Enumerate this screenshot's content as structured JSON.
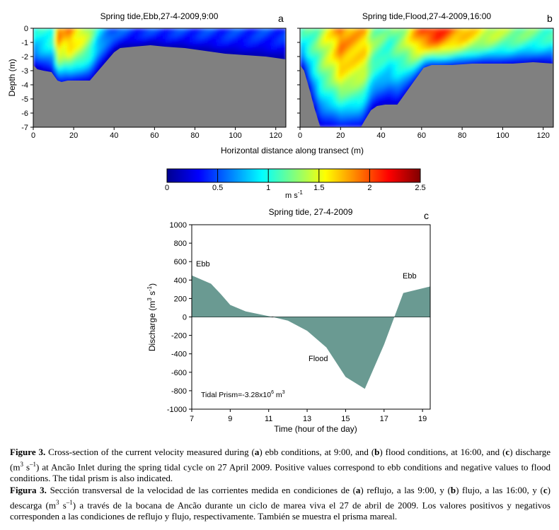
{
  "chart_data": [
    {
      "id": "a",
      "type": "heatmap",
      "panel_letter": "a",
      "title": "Spring tide,Ebb,27-4-2009,9:00",
      "xlabel": "Horizontal distance along transect (m)",
      "ylabel": "Depth (m)",
      "xlim": [
        0,
        125
      ],
      "ylim": [
        -7,
        0
      ],
      "xticks": [
        0,
        20,
        40,
        60,
        80,
        100,
        120
      ],
      "yticks": [
        0,
        -1,
        -2,
        -3,
        -4,
        -5,
        -6,
        -7
      ],
      "bottom_profile": {
        "x": [
          0,
          2,
          5,
          9,
          12,
          14,
          17,
          20,
          24,
          28,
          31,
          34,
          37,
          40,
          43,
          50,
          58,
          65,
          75,
          85,
          95,
          105,
          115,
          125
        ],
        "depth": [
          -2.6,
          -2.9,
          -3.0,
          -3.1,
          -3.7,
          -3.8,
          -3.7,
          -3.7,
          -3.7,
          -3.7,
          -3.2,
          -2.7,
          -2.2,
          -1.7,
          -1.4,
          -1.3,
          -1.2,
          -1.3,
          -1.4,
          -1.6,
          -1.8,
          -1.9,
          -2.0,
          -2.2
        ]
      },
      "velocity_profile_surface": {
        "x": [
          0,
          5,
          10,
          12,
          15,
          18,
          21,
          24,
          28,
          32,
          36,
          40,
          50,
          60,
          70,
          80,
          90,
          100,
          110,
          120,
          125
        ],
        "speed": [
          0.9,
          1.0,
          1.1,
          1.9,
          1.7,
          1.85,
          1.65,
          1.55,
          1.3,
          0.9,
          0.7,
          0.55,
          0.45,
          0.45,
          0.45,
          0.45,
          0.45,
          0.45,
          0.45,
          0.45,
          0.45
        ]
      }
    },
    {
      "id": "b",
      "type": "heatmap",
      "panel_letter": "b",
      "title": "Spring tide,Flood,27-4-2009,16:00",
      "xlabel": "Horizontal distance along transect (m)",
      "xlim": [
        0,
        125
      ],
      "ylim": [
        -7,
        0
      ],
      "xticks": [
        0,
        20,
        40,
        60,
        80,
        100,
        120
      ],
      "bottom_profile": {
        "x": [
          0,
          2,
          5,
          7,
          10,
          20,
          30,
          32,
          35,
          38,
          42,
          48,
          52,
          55,
          58,
          61,
          65,
          75,
          85,
          95,
          105,
          115,
          125
        ],
        "depth": [
          -2.6,
          -3.0,
          -4.5,
          -5.6,
          -7.0,
          -7.0,
          -7.0,
          -6.5,
          -5.8,
          -5.5,
          -5.4,
          -5.4,
          -4.6,
          -4.0,
          -3.4,
          -2.8,
          -2.6,
          -2.6,
          -2.5,
          -2.5,
          -2.5,
          -2.4,
          -2.5
        ]
      },
      "velocity_profile_surface": {
        "x": [
          0,
          4,
          8,
          12,
          16,
          20,
          24,
          28,
          32,
          36,
          40,
          44,
          48,
          52,
          56,
          60,
          64,
          68,
          72,
          76,
          80,
          85,
          90,
          95,
          100,
          105,
          110,
          115,
          120,
          125
        ],
        "speed": [
          1.0,
          1.1,
          1.2,
          1.45,
          1.6,
          1.9,
          1.8,
          1.75,
          1.7,
          1.3,
          1.2,
          1.1,
          1.25,
          1.4,
          1.7,
          1.95,
          2.1,
          2.15,
          2.0,
          1.85,
          1.8,
          1.65,
          1.5,
          1.45,
          1.35,
          1.3,
          1.25,
          1.2,
          1.15,
          1.1
        ]
      }
    },
    {
      "id": "colorbar",
      "type": "colorbar",
      "label": "m s",
      "label_sup": "-1",
      "range": [
        0,
        2.5
      ],
      "ticks": [
        "0",
        "0.5",
        "1",
        "1.5",
        "2",
        "2.5"
      ]
    },
    {
      "id": "c",
      "type": "area",
      "panel_letter": "c",
      "title": "Spring tide, 27-4-2009",
      "xlabel": "Time (hour of the day)",
      "ylabel": "Discharge (m",
      "ylabel_sup1": "3",
      "ylabel_mid": " s",
      "ylabel_sup2": "-1",
      "ylabel_end": ")",
      "xlim": [
        7,
        19.4
      ],
      "ylim": [
        -1000,
        1000
      ],
      "xticks": [
        7,
        9,
        11,
        13,
        15,
        17,
        19
      ],
      "yticks": [
        1000,
        800,
        600,
        400,
        200,
        0,
        -200,
        -400,
        -600,
        -800,
        -1000
      ],
      "x": [
        7,
        8,
        8.5,
        9,
        9.8,
        11.2,
        12,
        13,
        14,
        15,
        16,
        17,
        18,
        19.4
      ],
      "y": [
        450,
        360,
        250,
        130,
        60,
        0,
        -40,
        -150,
        -330,
        -650,
        -780,
        -300,
        260,
        330
      ],
      "fill_color": "#6a9a92",
      "annotations": [
        "Ebb",
        "Flood",
        "Ebb"
      ],
      "tidal_prism": "Tidal Prism=-3.28x10",
      "tidal_prism_sup": "6",
      "tidal_prism_unit": " m",
      "tidal_prism_unit_sup": "3"
    }
  ],
  "caption_en": {
    "label": "Figure 3.",
    "p1": " Cross-section of the current velocity measured during (",
    "a": "a",
    "p2": ") ebb conditions, at 9:00, and (",
    "b": "b",
    "p3": ") flood conditions, at 16:00, and (",
    "c": "c",
    "p4": ") discharge (m",
    "sup1": "3",
    "p5": " s",
    "sup2": "–1",
    "p6": ") at  Ancão Inlet during the spring tidal cycle on 27 April 2009. Positive values correspond to ebb conditions and negative values to flood conditions. The tidal prism is also indicated."
  },
  "caption_es": {
    "label": "Figura 3.",
    "p1": " Sección transversal de la velocidad de las corrientes medida en condiciones de (",
    "a": "a",
    "p2": ") reflujo, a las 9:00, y (",
    "b": "b",
    "p3": ") flujo, a las 16:00, y (",
    "c": "c",
    "p4": ") descarga (m",
    "sup1": "3",
    "p5": " s",
    "sup2": "–1",
    "p6": ") a través de la bocana de Ancão durante un ciclo de marea viva el 27 de abril de 2009. Los valores positivos y negativos corresponden a las condiciones de reflujo y flujo, respectivamente. También se muestra el prisma mareal."
  }
}
